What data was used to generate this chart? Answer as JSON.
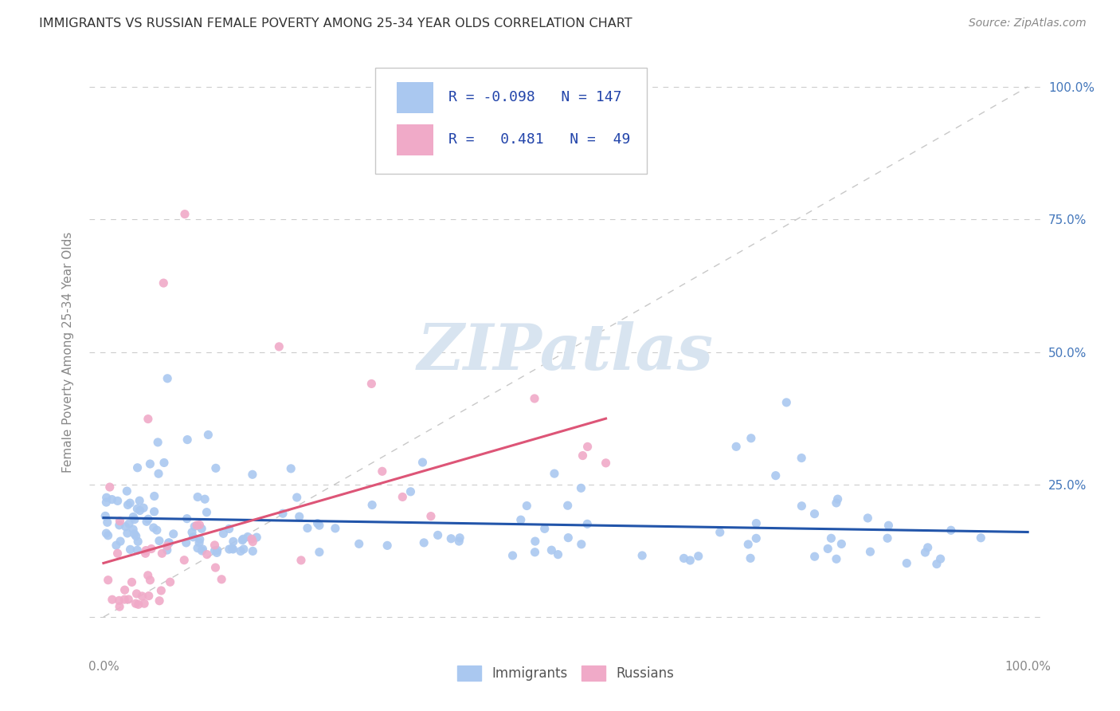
{
  "title": "IMMIGRANTS VS RUSSIAN FEMALE POVERTY AMONG 25-34 YEAR OLDS CORRELATION CHART",
  "source": "Source: ZipAtlas.com",
  "ylabel": "Female Poverty Among 25-34 Year Olds",
  "legend_r_immigrants": "-0.098",
  "legend_n_immigrants": "147",
  "legend_r_russians": "0.481",
  "legend_n_russians": "49",
  "immigrants_color": "#aac8f0",
  "russians_color": "#f0aac8",
  "immigrants_line_color": "#2255aa",
  "russians_line_color": "#dd5577",
  "diagonal_color": "#c8c8c8",
  "watermark_color": "#d8e4f0",
  "background_color": "#ffffff",
  "title_color": "#333333",
  "source_color": "#888888",
  "axis_color": "#aaaaaa",
  "tick_label_color": "#888888",
  "right_tick_color": "#4477bb",
  "legend_text_color": "#2244aa",
  "grid_color": "#cccccc"
}
